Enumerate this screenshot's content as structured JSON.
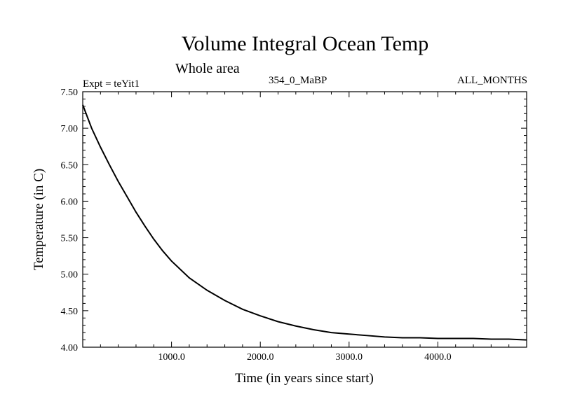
{
  "chart_data": {
    "type": "line",
    "title": "Volume Integral Ocean Temp",
    "subtitle": "Whole area",
    "experiment": "Expt = teYit1",
    "period": "354_0_MaBP",
    "months": "ALL_MONTHS",
    "xlabel": "Time (in years since start)",
    "ylabel": "Temperature (in C)",
    "xlim": [
      0,
      5000
    ],
    "ylim": [
      4.0,
      7.5
    ],
    "xticks": [
      1000,
      2000,
      3000,
      4000
    ],
    "xtick_labels": [
      "1000.0",
      "2000.0",
      "3000.0",
      "4000.0"
    ],
    "yticks": [
      4.0,
      4.5,
      5.0,
      5.5,
      6.0,
      6.5,
      7.0,
      7.5
    ],
    "ytick_labels": [
      "4.00",
      "4.50",
      "5.00",
      "5.50",
      "6.00",
      "6.50",
      "7.00",
      "7.50"
    ],
    "grid": false,
    "series": [
      {
        "name": "Volume integral temperature",
        "x": [
          0,
          100,
          200,
          300,
          400,
          500,
          600,
          700,
          800,
          900,
          1000,
          1200,
          1400,
          1600,
          1800,
          2000,
          2200,
          2400,
          2600,
          2800,
          3000,
          3200,
          3400,
          3600,
          3800,
          4000,
          4200,
          4400,
          4600,
          4800,
          5000
        ],
        "y": [
          7.32,
          7.0,
          6.74,
          6.5,
          6.27,
          6.06,
          5.85,
          5.66,
          5.48,
          5.32,
          5.18,
          4.95,
          4.78,
          4.64,
          4.52,
          4.43,
          4.35,
          4.29,
          4.24,
          4.2,
          4.18,
          4.16,
          4.14,
          4.13,
          4.13,
          4.12,
          4.12,
          4.12,
          4.11,
          4.11,
          4.1
        ]
      }
    ]
  }
}
